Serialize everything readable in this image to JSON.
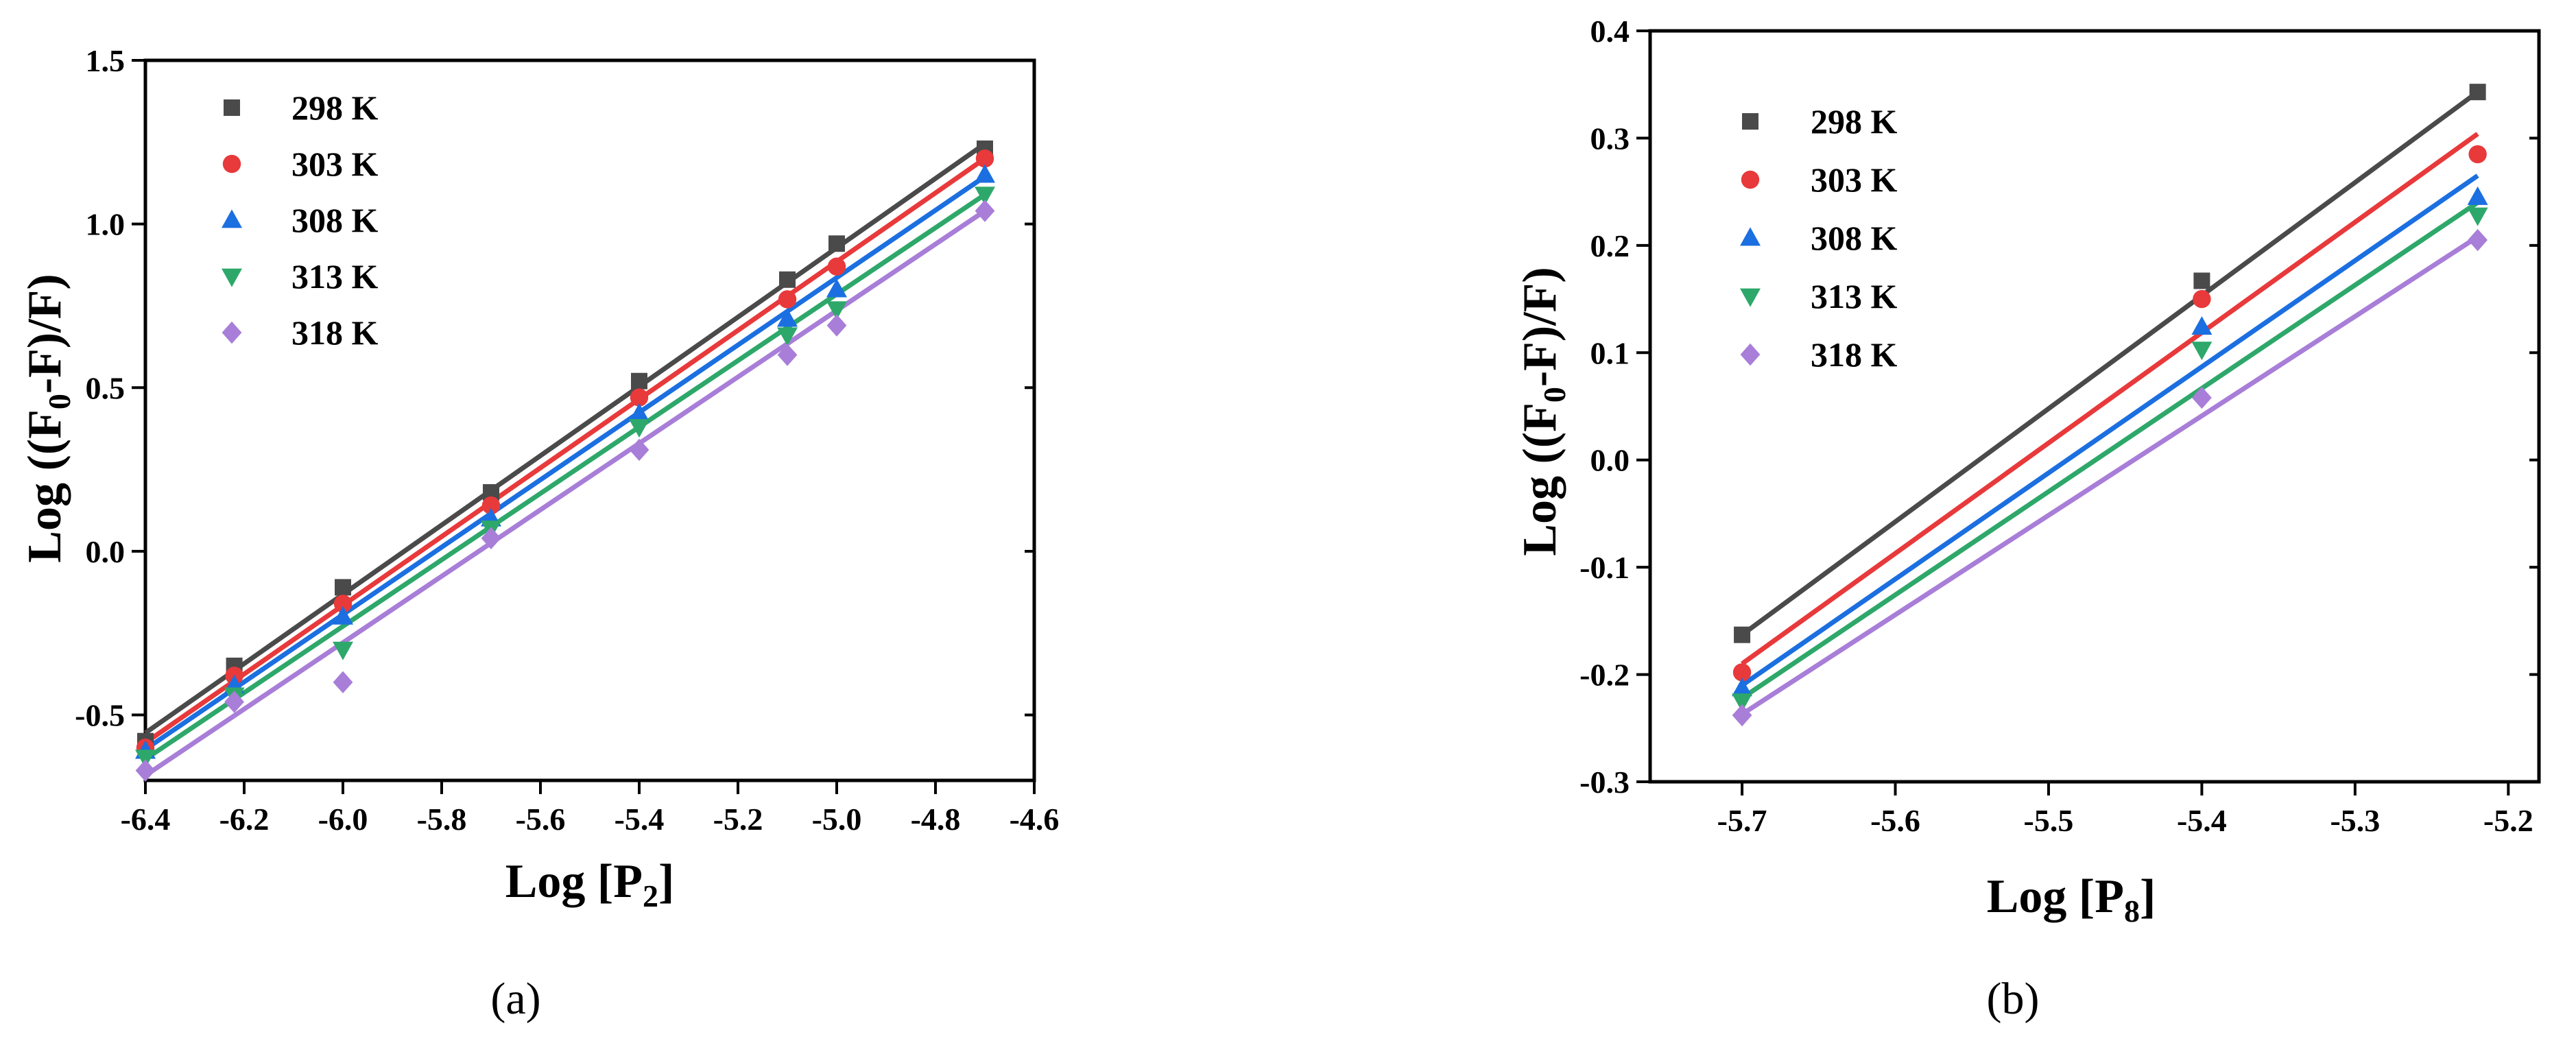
{
  "chart_data": [
    {
      "panel_label": "(a)",
      "type": "scatter",
      "xlabel_main": "Log [P",
      "xlabel_sub": "2",
      "xlabel_end": "]",
      "ylabel_main": "Log ((F",
      "ylabel_sub": "0",
      "ylabel_end": "-F)/F)",
      "xlim": [
        -6.4,
        -4.6
      ],
      "ylim": [
        -0.7,
        1.5
      ],
      "xticks": [
        "-6.4",
        "-6.2",
        "-6.0",
        "-5.8",
        "-5.6",
        "-5.4",
        "-5.2",
        "-5.0",
        "-4.8",
        "-4.6"
      ],
      "yticks": [
        "-0.5",
        "0.0",
        "0.5",
        "1.0",
        "1.5"
      ],
      "x": [
        -6.4,
        -6.22,
        -6.0,
        -5.7,
        -5.4,
        -5.1,
        -5.0,
        -4.7
      ],
      "series": [
        {
          "name": "298 K",
          "marker": "square",
          "color": "#4a4a4a",
          "values": [
            -0.58,
            -0.35,
            -0.11,
            0.18,
            0.52,
            0.83,
            0.94,
            1.23
          ],
          "fit": [
            [
              -6.4,
              -0.555
            ],
            [
              -4.7,
              1.245
            ]
          ]
        },
        {
          "name": "303 K",
          "marker": "circle",
          "color": "#e8393b",
          "values": [
            -0.6,
            -0.38,
            -0.16,
            0.14,
            0.47,
            0.77,
            0.87,
            1.2
          ],
          "fit": [
            [
              -6.4,
              -0.585
            ],
            [
              -4.7,
              1.2
            ]
          ]
        },
        {
          "name": "308 K",
          "marker": "triangle-up",
          "color": "#1b6fe0",
          "values": [
            -0.61,
            -0.41,
            -0.2,
            0.1,
            0.42,
            0.71,
            0.8,
            1.15
          ],
          "fit": [
            [
              -6.4,
              -0.605
            ],
            [
              -4.7,
              1.145
            ]
          ]
        },
        {
          "name": "313 K",
          "marker": "triangle-down",
          "color": "#2ea86a",
          "values": [
            -0.63,
            -0.44,
            -0.3,
            0.07,
            0.38,
            0.66,
            0.74,
            1.09
          ],
          "fit": [
            [
              -6.4,
              -0.635
            ],
            [
              -4.7,
              1.09
            ]
          ]
        },
        {
          "name": "318 K",
          "marker": "diamond",
          "color": "#a87ed8",
          "values": [
            -0.67,
            -0.46,
            -0.4,
            0.04,
            0.31,
            0.6,
            0.69,
            1.04
          ],
          "fit": [
            [
              -6.4,
              -0.685
            ],
            [
              -4.7,
              1.04
            ]
          ]
        }
      ],
      "legend_position": "top-left"
    },
    {
      "panel_label": "(b)",
      "type": "scatter",
      "xlabel_main": "Log [P",
      "xlabel_sub": "8",
      "xlabel_end": "]",
      "ylabel_main": "Log ((F",
      "ylabel_sub": "0",
      "ylabel_end": "-F)/F)",
      "xlim": [
        -5.76,
        -5.18
      ],
      "ylim": [
        -0.3,
        0.4
      ],
      "xticks": [
        "-5.7",
        "-5.6",
        "-5.5",
        "-5.4",
        "-5.3",
        "-5.2"
      ],
      "yticks": [
        "-0.3",
        "-0.2",
        "-0.1",
        "0.0",
        "0.1",
        "0.2",
        "0.3",
        "0.4"
      ],
      "x": [
        -5.7,
        -5.4,
        -5.22
      ],
      "series": [
        {
          "name": "298 K",
          "marker": "square",
          "color": "#4a4a4a",
          "values": [
            -0.163,
            0.167,
            0.343
          ],
          "fit": [
            [
              -5.7,
              -0.163
            ],
            [
              -5.22,
              0.343
            ]
          ]
        },
        {
          "name": "303 K",
          "marker": "circle",
          "color": "#e8393b",
          "values": [
            -0.198,
            0.15,
            0.285
          ],
          "fit": [
            [
              -5.7,
              -0.19
            ],
            [
              -5.22,
              0.304
            ]
          ]
        },
        {
          "name": "308 K",
          "marker": "triangle-up",
          "color": "#1b6fe0",
          "values": [
            -0.213,
            0.124,
            0.245
          ],
          "fit": [
            [
              -5.7,
              -0.21
            ],
            [
              -5.22,
              0.265
            ]
          ]
        },
        {
          "name": "313 K",
          "marker": "triangle-down",
          "color": "#2ea86a",
          "values": [
            -0.225,
            0.103,
            0.228
          ],
          "fit": [
            [
              -5.7,
              -0.222
            ],
            [
              -5.22,
              0.24
            ]
          ]
        },
        {
          "name": "318 K",
          "marker": "diamond",
          "color": "#a87ed8",
          "values": [
            -0.238,
            0.058,
            0.205
          ],
          "fit": [
            [
              -5.7,
              -0.237
            ],
            [
              -5.22,
              0.208
            ]
          ]
        }
      ],
      "legend_position": "top-left"
    }
  ]
}
